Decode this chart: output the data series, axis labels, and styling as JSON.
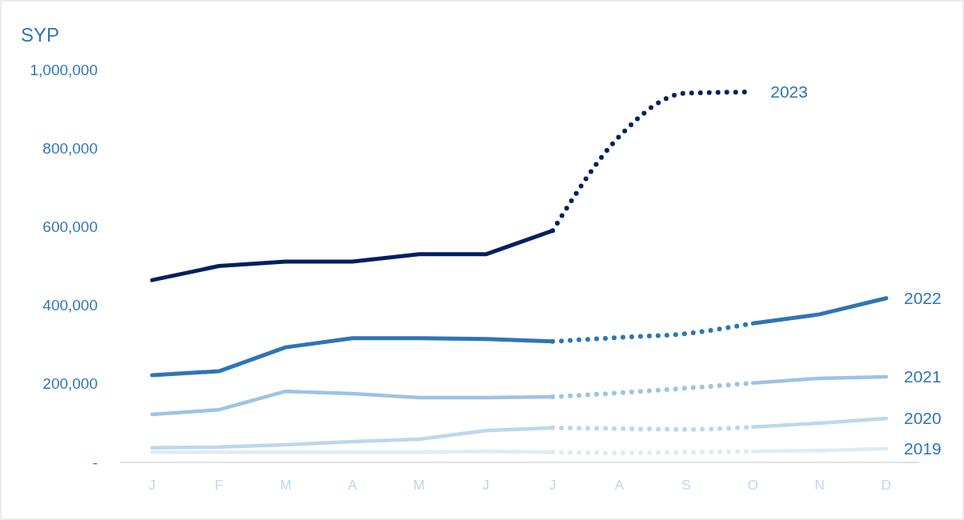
{
  "chart_data": {
    "type": "line",
    "ylabel": "SYP",
    "categories": [
      "J",
      "F",
      "M",
      "A",
      "M",
      "J",
      "J",
      "A",
      "S",
      "O",
      "N",
      "D"
    ],
    "ylim": [
      0,
      1000000
    ],
    "yticks": [
      {
        "value": 0,
        "label": "-"
      },
      {
        "value": 200000,
        "label": "200,000"
      },
      {
        "value": 400000,
        "label": "400,000"
      },
      {
        "value": 600000,
        "label": "600,000"
      },
      {
        "value": 800000,
        "label": "800,000"
      },
      {
        "value": 1000000,
        "label": "1,000,000"
      }
    ],
    "grid": false,
    "series": [
      {
        "color": "#deebf7",
        "line_style": "solid",
        "values": [
          26000,
          26000,
          26000,
          26000,
          26000,
          28000,
          26000,
          null,
          null,
          null,
          null,
          null
        ]
      },
      {
        "color": "#deebf7",
        "line_style": "dotted",
        "values": [
          null,
          null,
          null,
          null,
          null,
          null,
          26000,
          24000,
          26000,
          28000,
          null,
          null
        ]
      },
      {
        "name": "2019",
        "color": "#deebf7",
        "line_style": "solid",
        "values": [
          null,
          null,
          null,
          null,
          null,
          null,
          null,
          null,
          null,
          28000,
          30000,
          35000
        ]
      },
      {
        "color": "#bdd7ee",
        "line_style": "solid",
        "values": [
          37000,
          39000,
          45000,
          53000,
          59000,
          81000,
          88000,
          null,
          null,
          null,
          null,
          null
        ]
      },
      {
        "color": "#bdd7ee",
        "line_style": "dotted",
        "values": [
          null,
          null,
          null,
          null,
          null,
          null,
          88000,
          86000,
          84000,
          90000,
          null,
          null
        ]
      },
      {
        "name": "2020",
        "color": "#bdd7ee",
        "line_style": "solid",
        "values": [
          null,
          null,
          null,
          null,
          null,
          null,
          null,
          null,
          null,
          90000,
          100000,
          112000
        ]
      },
      {
        "color": "#9dc3e6",
        "line_style": "solid",
        "values": [
          122000,
          134000,
          181000,
          175000,
          165000,
          165000,
          167000,
          null,
          null,
          null,
          null,
          null
        ]
      },
      {
        "color": "#9dc3e6",
        "line_style": "dotted",
        "values": [
          null,
          null,
          null,
          null,
          null,
          null,
          167000,
          177000,
          189000,
          202000,
          null,
          null
        ]
      },
      {
        "name": "2021",
        "color": "#9dc3e6",
        "line_style": "solid",
        "values": [
          null,
          null,
          null,
          null,
          null,
          null,
          null,
          null,
          null,
          202000,
          214000,
          218000
        ]
      },
      {
        "color": "#2e75b6",
        "line_style": "solid",
        "values": [
          222000,
          232000,
          293000,
          316000,
          316000,
          314000,
          308000,
          null,
          null,
          null,
          null,
          null
        ]
      },
      {
        "color": "#2e75b6",
        "line_style": "dotted",
        "values": [
          null,
          null,
          null,
          null,
          null,
          null,
          308000,
          318000,
          328000,
          354000,
          null,
          null
        ]
      },
      {
        "name": "2022",
        "color": "#2e75b6",
        "line_style": "solid",
        "values": [
          null,
          null,
          null,
          null,
          null,
          null,
          null,
          null,
          null,
          354000,
          377000,
          418000
        ]
      },
      {
        "color": "#002060",
        "line_style": "solid",
        "values": [
          464000,
          500000,
          511000,
          511000,
          530000,
          530000,
          590000,
          null,
          null,
          null,
          null,
          null
        ]
      },
      {
        "name": "2023",
        "color": "#002060",
        "line_style": "dotted",
        "values": [
          null,
          null,
          null,
          null,
          null,
          null,
          590000,
          830000,
          940000,
          943000,
          null,
          null
        ]
      }
    ]
  }
}
